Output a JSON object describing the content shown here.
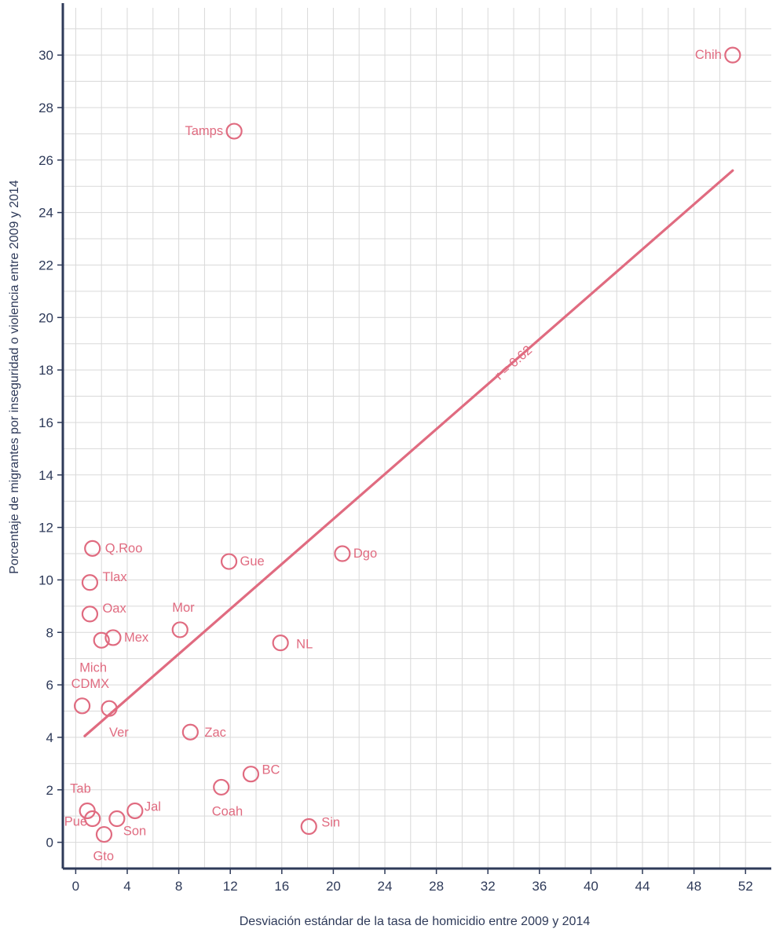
{
  "colors": {
    "point": "#e06b80",
    "trend": "#e06b80",
    "axis": "#2e3a59",
    "grid": "#d9d9d9"
  },
  "chart_data": {
    "type": "scatter",
    "title": "",
    "xlabel": "Desviación estándar de la tasa de homicidio entre 2009 y 2014",
    "ylabel": "Porcentaje de migrantes por inseguridad o violencia entre 2009 y 2014",
    "xlim": [
      -1,
      54
    ],
    "ylim": [
      -1,
      31.8
    ],
    "xticks": [
      0,
      4,
      8,
      12,
      16,
      20,
      24,
      28,
      32,
      36,
      40,
      44,
      48,
      52
    ],
    "yticks": [
      0,
      2,
      4,
      6,
      8,
      10,
      12,
      14,
      16,
      18,
      20,
      22,
      24,
      26,
      28,
      30
    ],
    "grid": true,
    "points": [
      {
        "label": "Chih",
        "x": 51.0,
        "y": 30.0
      },
      {
        "label": "Tamps",
        "x": 12.3,
        "y": 27.1
      },
      {
        "label": "Q.Roo",
        "x": 1.3,
        "y": 11.2
      },
      {
        "label": "Tlax",
        "x": 1.1,
        "y": 9.9
      },
      {
        "label": "Oax",
        "x": 1.1,
        "y": 8.7
      },
      {
        "label": "Mex",
        "x": 2.9,
        "y": 7.8
      },
      {
        "label": "Mich",
        "x": 2.0,
        "y": 7.7
      },
      {
        "label": "CDMX",
        "x": 0.5,
        "y": 5.2
      },
      {
        "label": "Ver",
        "x": 2.6,
        "y": 5.1
      },
      {
        "label": "Mor",
        "x": 8.1,
        "y": 8.1
      },
      {
        "label": "Gue",
        "x": 11.9,
        "y": 10.7
      },
      {
        "label": "Dgo",
        "x": 20.7,
        "y": 11.0
      },
      {
        "label": "NL",
        "x": 15.9,
        "y": 7.6
      },
      {
        "label": "Zac",
        "x": 8.9,
        "y": 4.2
      },
      {
        "label": "BC",
        "x": 13.6,
        "y": 2.6
      },
      {
        "label": "Coah",
        "x": 11.3,
        "y": 2.1
      },
      {
        "label": "Sin",
        "x": 18.1,
        "y": 0.6
      },
      {
        "label": "Tab",
        "x": 0.9,
        "y": 1.2
      },
      {
        "label": "Pue",
        "x": 1.3,
        "y": 0.9
      },
      {
        "label": "Gto",
        "x": 2.2,
        "y": 0.3
      },
      {
        "label": "Son",
        "x": 3.2,
        "y": 0.9
      },
      {
        "label": "Jal",
        "x": 4.6,
        "y": 1.2
      }
    ],
    "trendline": {
      "x1": 0.7,
      "y1": 4.05,
      "x2": 51.0,
      "y2": 25.6,
      "label": "r = 0.62"
    }
  }
}
